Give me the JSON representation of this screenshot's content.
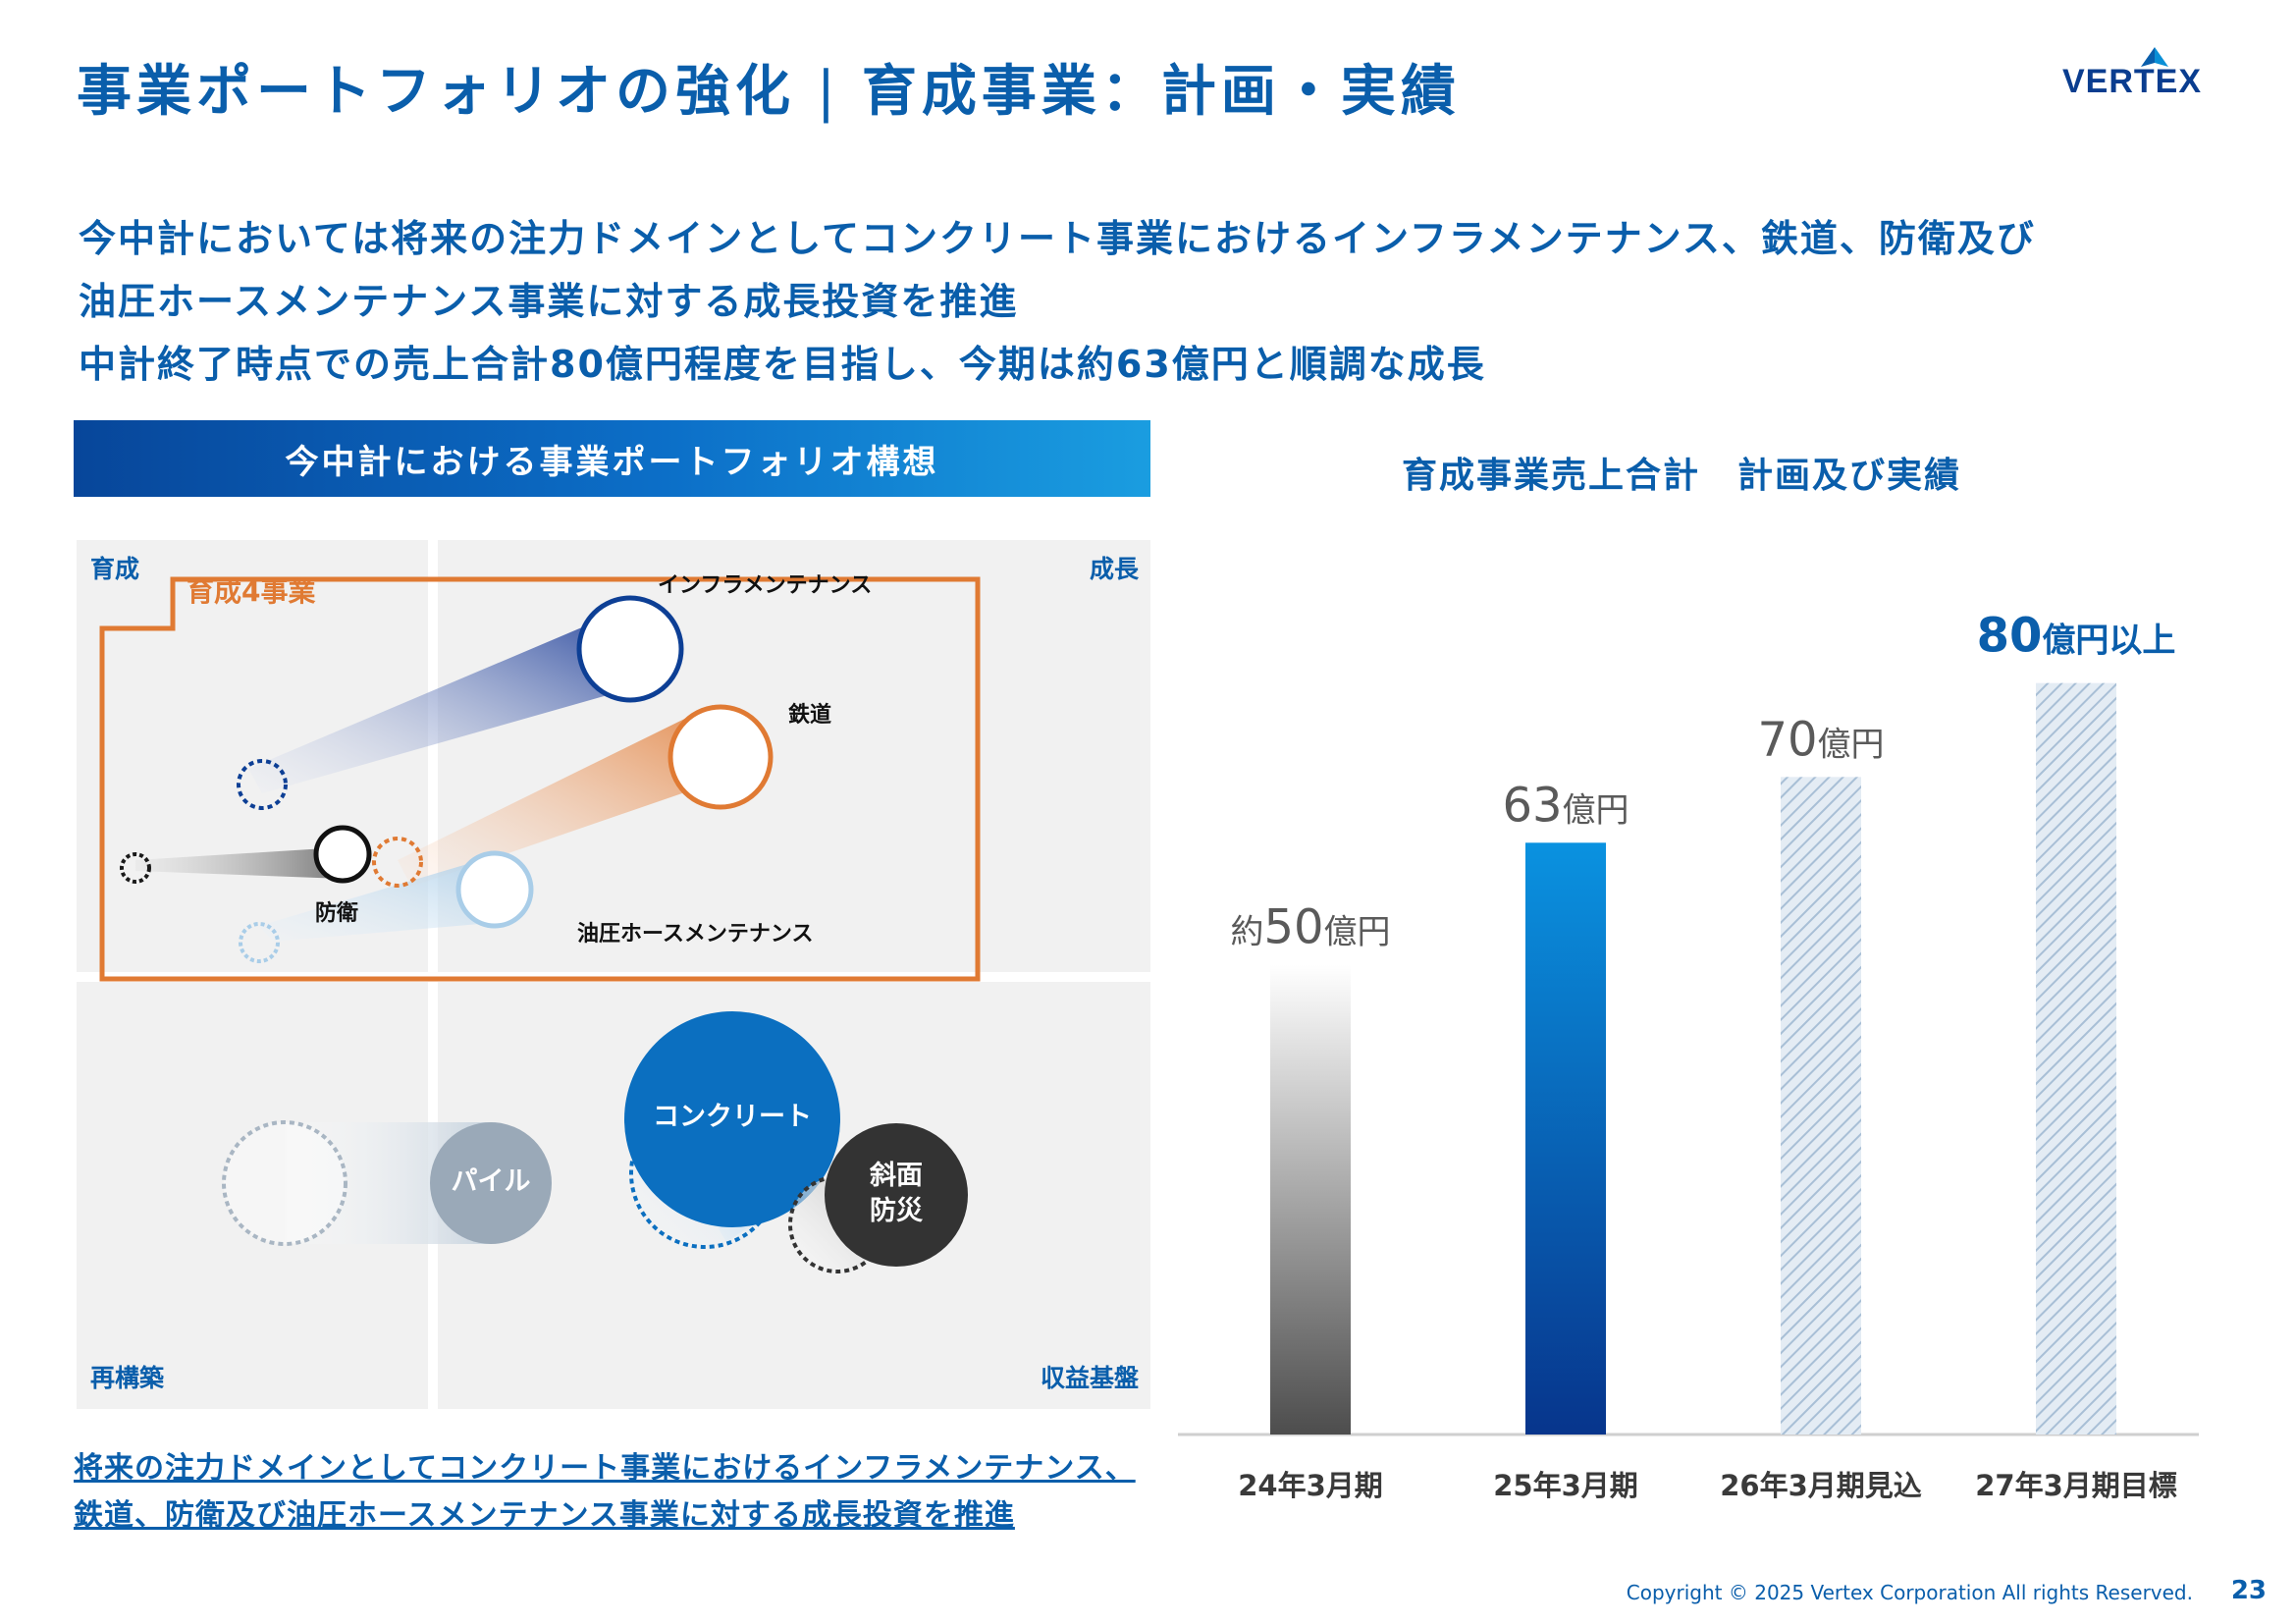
{
  "header": {
    "title_left": "事業ポートフォリオの強化",
    "separator": "|",
    "title_right": "育成事業：計画・実績",
    "logo_text": "VERTEX"
  },
  "lead": {
    "line1": "今中計においては将来の注力ドメインとしてコンクリート事業におけるインフラメンテナンス、鉄道、防衛及び",
    "line2": "油圧ホースメンテナンス事業に対する成長投資を推進",
    "line3": "中計終了時点での売上合計80億円程度を目指し、今期は約63億円と順調な成長"
  },
  "portfolio": {
    "banner": "今中計における事業ポートフォリオ構想",
    "quadrants": {
      "top_left": "育成",
      "top_right": "成長",
      "bottom_left": "再構築",
      "bottom_right": "収益基盤"
    },
    "group_label": "育成4事業",
    "businesses": {
      "infra": "インフラメンテナンス",
      "rail": "鉄道",
      "defense": "防衛",
      "hose": "油圧ホースメンテナンス",
      "concrete": "コンクリート",
      "pile": "パイル",
      "slope_line1": "斜面",
      "slope_line2": "防災"
    },
    "colors": {
      "infra": "#0d3f95",
      "rail": "#e07a33",
      "defense": "#1a1a1a",
      "hose": "#a9cde8",
      "concrete": "#0b6fc0",
      "pile": "#9aa9b8",
      "slope": "#333333",
      "group_border": "#e07a33"
    },
    "footnote": {
      "line1": "将来の注力ドメインとしてコンクリート事業におけるインフラメンテナンス、",
      "line2": "鉄道、防衛及び油圧ホースメンテナンス事業に対する成長投資を推進"
    }
  },
  "chart_title": "育成事業売上合計　計画及び実績",
  "chart_data": {
    "type": "bar",
    "categories": [
      "24年3月期",
      "25年3月期",
      "26年3月期見込",
      "27年3月期目標"
    ],
    "values": [
      50,
      63,
      70,
      80
    ],
    "value_labels": [
      {
        "prefix": "約",
        "number": "50",
        "unit": "億円",
        "suffix": ""
      },
      {
        "prefix": "",
        "number": "63",
        "unit": "億円",
        "suffix": ""
      },
      {
        "prefix": "",
        "number": "70",
        "unit": "億円",
        "suffix": ""
      },
      {
        "prefix": "",
        "number": "80",
        "unit": "億円",
        "suffix": "以上"
      }
    ],
    "styles": [
      "actual-gray",
      "actual-blue",
      "plan-hatched",
      "plan-hatched"
    ],
    "title": "育成事業売上合計　計画及び実績",
    "ylim": [
      0,
      90
    ]
  },
  "footer": {
    "copyright": "Copyright © 2025 Vertex Corporation All rights Reserved.",
    "page": "23"
  }
}
